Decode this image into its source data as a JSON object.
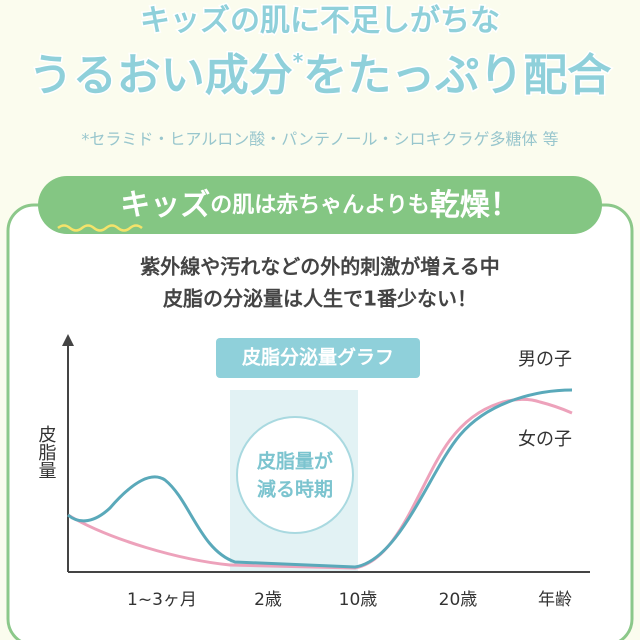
{
  "header": {
    "line1": "キッズの肌に不足しがちな",
    "line2_main": "うるおい成分",
    "line2_mark": "*",
    "line2_rest": "をたっぷり配合",
    "note": "*セラミド・ヒアルロン酸・パンテノール・シロキクラゲ多糖体 等"
  },
  "banner": {
    "part1": "キッズ",
    "part2": "の肌は赤ちゃんよりも",
    "part3": "乾燥！"
  },
  "description": {
    "line1": "紫外線や汚れなどの外的刺激が増える中",
    "line2": "皮脂の分泌量は人生で1番少ない！"
  },
  "graph": {
    "title": "皮脂分泌量グラフ",
    "y_label": "皮脂量",
    "callout": [
      "皮脂量が",
      "減る時期"
    ],
    "legend": [
      "男の子",
      "女の子"
    ],
    "x_labels": [
      "1~3ヶ月",
      "2歳",
      "10歳",
      "20歳",
      "年齢"
    ]
  }
}
